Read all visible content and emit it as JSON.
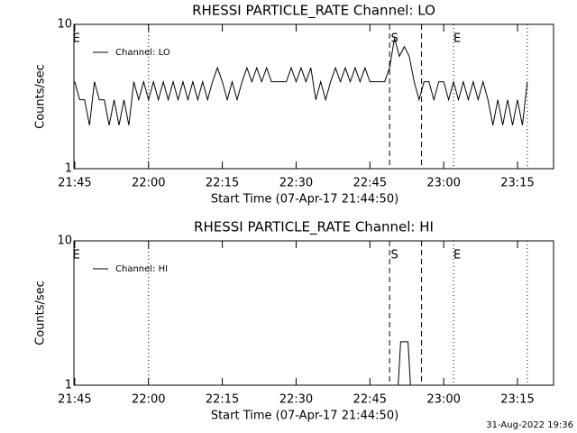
{
  "chart_data": [
    {
      "type": "line",
      "title": "RHESSI PARTICLE_RATE Channel: LO",
      "xlabel": "Start Time (07-Apr-17 21:44:50)",
      "ylabel": "Counts/sec",
      "ylog": true,
      "ylim": [
        1,
        10
      ],
      "yticks": [
        1,
        10
      ],
      "xlim": [
        "21:44:50",
        "23:22:20"
      ],
      "xticks": [
        "21:45",
        "22:00",
        "22:15",
        "22:30",
        "22:45",
        "23:00",
        "23:15"
      ],
      "legend": "top left",
      "series": [
        {
          "name": "Channel: LO",
          "color": "#000000",
          "x": [
            "21:45",
            "21:46",
            "21:47",
            "21:48",
            "21:49",
            "21:50",
            "21:51",
            "21:52",
            "21:53",
            "21:54",
            "21:55",
            "21:56",
            "21:57",
            "21:58",
            "21:59",
            "22:00",
            "22:01",
            "22:02",
            "22:03",
            "22:04",
            "22:05",
            "22:06",
            "22:07",
            "22:08",
            "22:09",
            "22:10",
            "22:11",
            "22:12",
            "22:13",
            "22:14",
            "22:15",
            "22:16",
            "22:17",
            "22:18",
            "22:19",
            "22:20",
            "22:21",
            "22:22",
            "22:23",
            "22:24",
            "22:25",
            "22:26",
            "22:27",
            "22:28",
            "22:29",
            "22:30",
            "22:31",
            "22:32",
            "22:33",
            "22:34",
            "22:35",
            "22:36",
            "22:37",
            "22:38",
            "22:39",
            "22:40",
            "22:41",
            "22:42",
            "22:43",
            "22:44",
            "22:45",
            "22:46",
            "22:47",
            "22:48",
            "22:49",
            "22:50",
            "22:51",
            "22:52",
            "22:53",
            "22:54",
            "22:55",
            "22:56",
            "22:57",
            "22:58",
            "22:59",
            "23:00",
            "23:01",
            "23:02",
            "23:03",
            "23:04",
            "23:05",
            "23:06",
            "23:07",
            "23:08",
            "23:09",
            "23:10",
            "23:11",
            "23:12",
            "23:13",
            "23:14",
            "23:15",
            "23:16",
            "23:17"
          ],
          "values": [
            4,
            3,
            3,
            2,
            4,
            3,
            3,
            2,
            3,
            2,
            3,
            2,
            4,
            3,
            4,
            3,
            4,
            3,
            4,
            3,
            4,
            3,
            4,
            3,
            4,
            3,
            4,
            3,
            4,
            5,
            4,
            3,
            4,
            3,
            4,
            5,
            4,
            5,
            4,
            5,
            4,
            4,
            4,
            4,
            5,
            4,
            5,
            4,
            5,
            3,
            4,
            3,
            4,
            5,
            4,
            5,
            4,
            5,
            4,
            5,
            4,
            4,
            4,
            4,
            5,
            8,
            6,
            7,
            6,
            4,
            3,
            4,
            4,
            3,
            4,
            4,
            3,
            4,
            3,
            4,
            3,
            4,
            3,
            4,
            3,
            2,
            3,
            2,
            3,
            2,
            3,
            2,
            4
          ]
        }
      ],
      "vlines": [
        {
          "x": "22:00",
          "style": "dotted"
        },
        {
          "x": "22:49",
          "style": "dashed"
        },
        {
          "x": "22:55:30",
          "style": "dashed"
        },
        {
          "x": "23:02",
          "style": "dotted"
        },
        {
          "x": "23:17",
          "style": "dotted"
        }
      ],
      "flags": [
        {
          "x": "21:45:20",
          "label": "E"
        },
        {
          "x": "22:50",
          "label": "S"
        },
        {
          "x": "23:02:45",
          "label": "E"
        }
      ]
    },
    {
      "type": "line",
      "title": "RHESSI PARTICLE_RATE Channel: HI",
      "xlabel": "Start Time (07-Apr-17 21:44:50)",
      "ylabel": "Counts/sec",
      "ylog": true,
      "ylim": [
        1,
        10
      ],
      "yticks": [
        1,
        10
      ],
      "xlim": [
        "21:44:50",
        "23:22:20"
      ],
      "xticks": [
        "21:45",
        "22:00",
        "22:15",
        "22:30",
        "22:45",
        "23:00",
        "23:15"
      ],
      "legend": "top left",
      "series": [
        {
          "name": "Channel: HI",
          "color": "#000000",
          "x": [
            "22:50:45",
            "22:51:15",
            "22:52:45",
            "22:53:15"
          ],
          "values": [
            1,
            2,
            2,
            1
          ]
        }
      ],
      "vlines": [
        {
          "x": "22:00",
          "style": "dotted"
        },
        {
          "x": "22:49",
          "style": "dashed"
        },
        {
          "x": "22:55:30",
          "style": "dashed"
        },
        {
          "x": "23:02",
          "style": "dotted"
        },
        {
          "x": "23:17",
          "style": "dotted"
        }
      ],
      "flags": [
        {
          "x": "21:45:20",
          "label": "E"
        },
        {
          "x": "22:50",
          "label": "S"
        },
        {
          "x": "23:02:45",
          "label": "E"
        }
      ]
    }
  ],
  "footer": "31-Aug-2022 19:36"
}
